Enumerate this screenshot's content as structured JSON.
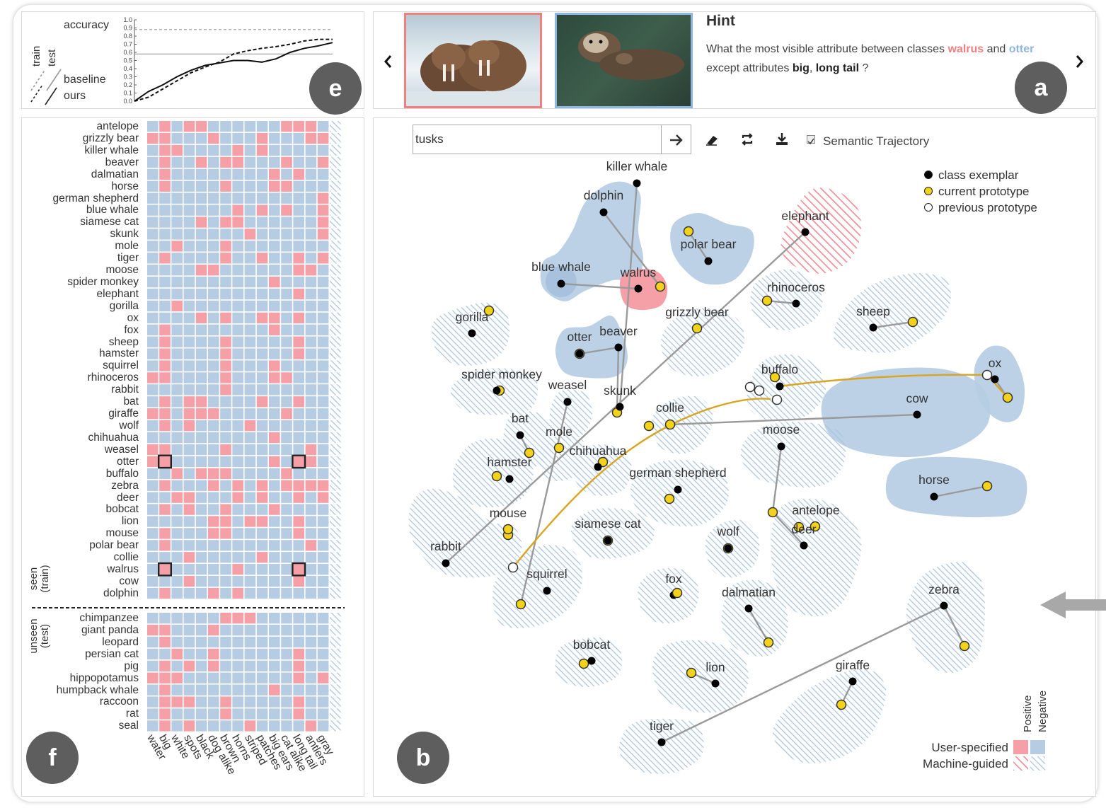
{
  "hint": {
    "title": "Hint",
    "prefix": "What the most visible attribute between classes ",
    "class_a": "walrus",
    "and": " and ",
    "class_b": "otter",
    "middle": " except attributes ",
    "attr1": "big",
    "comma": ", ",
    "attr2": "long tail",
    "suffix": " ?",
    "prev_icon": "chevron-left-icon",
    "next_icon": "chevron-right-icon",
    "image1_desc": "walrus photo",
    "image2_desc": "otter photo"
  },
  "panels": {
    "a": "a",
    "b": "b",
    "e": "e",
    "f": "f"
  },
  "accuracy_chart": {
    "ylabel": "accuracy",
    "yticks": [
      "1.0",
      "0.9",
      "0.8",
      "0.7",
      "0.6",
      "0.5",
      "0.4",
      "0.3",
      "0.2",
      "0.1",
      "0.0"
    ],
    "train_label": "train",
    "test_label": "test",
    "baseline_label": "baseline",
    "ours_label": "ours",
    "chart_data": {
      "type": "line",
      "ylim": [
        0,
        1
      ],
      "reference_lines": [
        0.88,
        0.58
      ],
      "series": [
        {
          "name": "baseline",
          "style": "dashed",
          "values": [
            0.0,
            0.05,
            0.15,
            0.25,
            0.35,
            0.42,
            0.48,
            0.58,
            0.62,
            0.65,
            0.67,
            0.7,
            0.74,
            0.76,
            0.76
          ]
        },
        {
          "name": "ours",
          "style": "solid",
          "values": [
            0.0,
            0.12,
            0.2,
            0.3,
            0.38,
            0.44,
            0.47,
            0.5,
            0.5,
            0.48,
            0.52,
            0.6,
            0.65,
            0.68,
            0.72
          ]
        }
      ]
    }
  },
  "matrix": {
    "seen_label": "seen\n(train)",
    "unseen_label": "unseen\n(test)",
    "seen_rows": [
      "antelope",
      "grizzly bear",
      "killer whale",
      "beaver",
      "dalmatian",
      "horse",
      "german shepherd",
      "blue whale",
      "siamese cat",
      "skunk",
      "mole",
      "tiger",
      "moose",
      "spider monkey",
      "elephant",
      "gorilla",
      "ox",
      "fox",
      "sheep",
      "hamster",
      "squirrel",
      "rhinoceros",
      "rabbit",
      "bat",
      "giraffe",
      "wolf",
      "chihuahua",
      "weasel",
      "otter",
      "buffalo",
      "zebra",
      "deer",
      "bobcat",
      "lion",
      "mouse",
      "polar bear",
      "collie",
      "walrus",
      "cow",
      "dolphin"
    ],
    "unseen_rows": [
      "chimpanzee",
      "giant panda",
      "leopard",
      "persian cat",
      "pig",
      "hippopotamus",
      "humpback whale",
      "raccoon",
      "rat",
      "seal"
    ],
    "columns": [
      "water",
      "big",
      "white",
      "spots",
      "black",
      "dog alike",
      "brown",
      "horns",
      "striped",
      "patches",
      "big ears",
      "cat alike",
      "long tail",
      "antlers",
      "gray"
    ],
    "colors": {
      "positive": "#f4a0a6",
      "negative": "#b5cce3",
      "hatch": "#c7d9ea"
    }
  },
  "embedding": {
    "search_value": "tusks",
    "search_go_icon": "arrow-right-icon",
    "tools": [
      "eraser-icon",
      "refresh-icon",
      "download-icon"
    ],
    "semantic_trajectory_label": "Semantic Trajectory",
    "legend": [
      "class exemplar",
      "current prototype",
      "previous prototype"
    ],
    "bottom_legend": {
      "positive": "Positive",
      "negative": "Negative",
      "user": "User-specified",
      "machine": "Machine-guided"
    },
    "side_arrow_icon": "arrow-left-icon",
    "labels": [
      "killer whale",
      "dolphin",
      "elephant",
      "polar bear",
      "blue whale",
      "walrus",
      "rhinoceros",
      "sheep",
      "gorilla",
      "grizzly bear",
      "otter",
      "beaver",
      "spider monkey",
      "weasel",
      "skunk",
      "buffalo",
      "ox",
      "cow",
      "collie",
      "bat",
      "mole",
      "chihuahua",
      "hamster",
      "german shepherd",
      "moose",
      "horse",
      "mouse",
      "siamese cat",
      "antelope",
      "wolf",
      "deer",
      "rabbit",
      "squirrel",
      "fox",
      "dalmatian",
      "zebra",
      "bobcat",
      "lion",
      "giraffe",
      "tiger"
    ]
  }
}
